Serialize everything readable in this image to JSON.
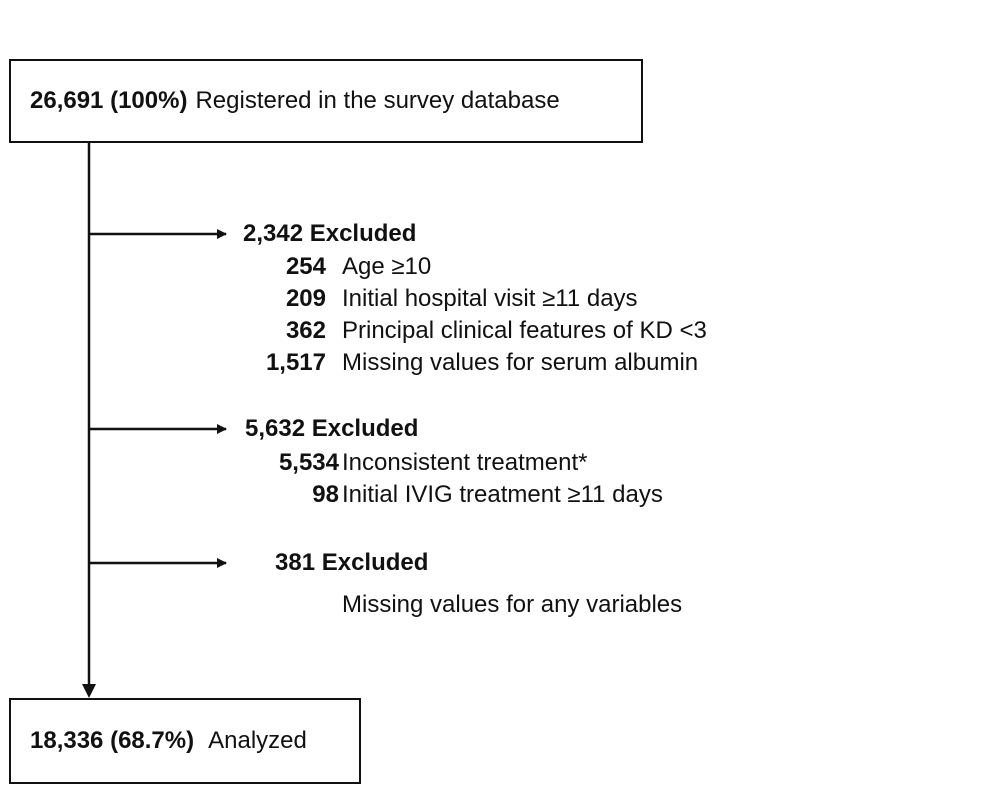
{
  "top_box": {
    "count": "26,691 (100%)",
    "label": "Registered in the survey database"
  },
  "exclusion_1": {
    "head": "2,342  Excluded",
    "items": [
      {
        "count": "254",
        "label": "Age ≥10"
      },
      {
        "count": "209",
        "label": "Initial hospital visit ≥11 days"
      },
      {
        "count": "362",
        "label": "Principal clinical features of KD <3"
      },
      {
        "count": "1,517",
        "label": "Missing values for serum albumin"
      }
    ]
  },
  "exclusion_2": {
    "head": "5,632  Excluded",
    "items": [
      {
        "count": "5,534",
        "label": "Inconsistent treatment*"
      },
      {
        "count": "98",
        "label": "Initial IVIG treatment ≥11 days"
      }
    ]
  },
  "exclusion_3": {
    "head": "381 Excluded",
    "items": [
      {
        "count": "",
        "label": "Missing values for any variables"
      }
    ]
  },
  "bottom_box": {
    "count": "18,336 (68.7%)",
    "label": "Analyzed"
  }
}
